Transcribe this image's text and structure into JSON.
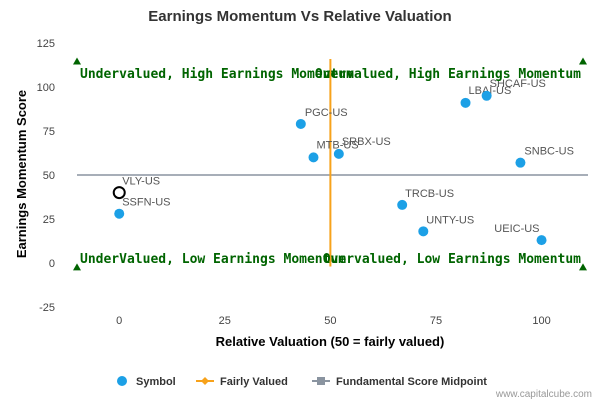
{
  "chart_data": {
    "type": "scatter",
    "title": "Earnings Momentum Vs Relative Valuation",
    "xlabel": "Relative Valuation (50 = fairly valued)",
    "ylabel": "Earnings Momentum Score",
    "xlim": [
      -10,
      111
    ],
    "ylim": [
      -25,
      125
    ],
    "x_ticks": [
      0,
      25,
      50,
      75,
      100
    ],
    "y_ticks": [
      -25,
      0,
      25,
      50,
      75,
      100,
      125
    ],
    "grid": false,
    "fair_value_line_x": 50,
    "midpoint_line_y": 50,
    "points": [
      {
        "label": "VLY-US",
        "x": 0,
        "y": 40,
        "highlighted": true
      },
      {
        "label": "SSFN-US",
        "x": 0,
        "y": 28,
        "highlighted": false
      },
      {
        "label": "PGC-US",
        "x": 43,
        "y": 79,
        "highlighted": false
      },
      {
        "label": "MTB-US",
        "x": 46,
        "y": 60,
        "highlighted": false
      },
      {
        "label": "SRBX-US",
        "x": 52,
        "y": 62,
        "highlighted": false
      },
      {
        "label": "LBAI-US",
        "x": 82,
        "y": 91,
        "highlighted": false
      },
      {
        "label": "SHCAF-US",
        "x": 87,
        "y": 95,
        "highlighted": false
      },
      {
        "label": "SNBC-US",
        "x": 95,
        "y": 57,
        "highlighted": false
      },
      {
        "label": "TRCB-US",
        "x": 67,
        "y": 33,
        "highlighted": false
      },
      {
        "label": "UNTY-US",
        "x": 72,
        "y": 18,
        "highlighted": false
      },
      {
        "label": "UEIC-US",
        "x": 100,
        "y": 13,
        "highlighted": false
      }
    ],
    "quadrant_labels": {
      "top_left": "Undervalued, High Earnings Momentum",
      "top_right": "Overvalued, High Earnings Momentum",
      "bottom_left": "UnderValued, Low Earnings Momentum",
      "bottom_right": "Overvalued, Low Earnings Momentum"
    },
    "legend": {
      "placement": "bottom",
      "items": [
        "Symbol",
        "Fairly Valued",
        "Fundamental Score Midpoint"
      ]
    },
    "colors": {
      "symbol": "#1ca0e6",
      "fair_value_line": "#f7a21b",
      "midpoint_line": "#8a94a0",
      "quadrant_text": "#006400",
      "markers": "#006400"
    }
  },
  "credit": "www.capitalcube.com"
}
